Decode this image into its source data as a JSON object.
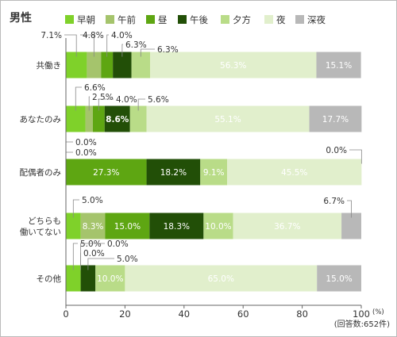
{
  "chart_data": {
    "type": "bar",
    "orientation": "horizontal",
    "stacked": true,
    "title": "男性",
    "categories": [
      [
        "共働き"
      ],
      [
        "あなたのみ"
      ],
      [
        "配偶者のみ"
      ],
      [
        "どちらも",
        "働いてない"
      ],
      [
        "その他"
      ]
    ],
    "series": [
      {
        "name": "早朝",
        "color": "#7fd12a",
        "values": [
          7.1,
          6.6,
          0.0,
          5.0,
          5.0
        ],
        "labels": [
          "7.1%",
          "6.6%",
          "0.0%",
          "5.0%",
          "5.0%"
        ]
      },
      {
        "name": "午前",
        "color": "#a5c46c",
        "values": [
          4.8,
          2.5,
          0.0,
          8.3,
          0.0
        ],
        "labels": [
          "4.8%",
          "2.5%",
          "0.0%",
          "8.3%",
          "0.0%"
        ]
      },
      {
        "name": "昼",
        "color": "#5ea612",
        "values": [
          4.0,
          4.0,
          27.3,
          15.0,
          0.0
        ],
        "labels": [
          "4.0%",
          "4.0%",
          "27.3%",
          "15.0%",
          "0.0%"
        ]
      },
      {
        "name": "午後",
        "color": "#224f07",
        "values": [
          6.3,
          8.6,
          18.2,
          18.3,
          5.0
        ],
        "labels": [
          "6.3%",
          "8.6%",
          "18.2%",
          "18.3%",
          "5.0%"
        ]
      },
      {
        "name": "夕方",
        "color": "#b9dc88",
        "values": [
          6.3,
          5.6,
          9.1,
          10.0,
          10.0
        ],
        "labels": [
          "6.3%",
          "5.6%",
          "9.1%",
          "10.0%",
          "10.0%"
        ]
      },
      {
        "name": "夜",
        "color": "#e1efcc",
        "values": [
          56.3,
          55.1,
          45.5,
          36.7,
          65.0
        ],
        "labels": [
          "56.3%",
          "55.1%",
          "45.5%",
          "36.7%",
          "65.0%"
        ]
      },
      {
        "name": "深夜",
        "color": "#b8b8b8",
        "values": [
          15.1,
          17.7,
          0.0,
          6.7,
          15.0
        ],
        "labels": [
          "15.1%",
          "17.7%",
          "0.0%",
          "6.7%",
          "15.0%"
        ]
      }
    ],
    "xlim": [
      0,
      100
    ],
    "xticks": [
      0,
      20,
      40,
      60,
      80,
      100
    ],
    "xunit": "(%)",
    "note": "(回答数:652件)",
    "legend_position": "top",
    "grid": false
  }
}
